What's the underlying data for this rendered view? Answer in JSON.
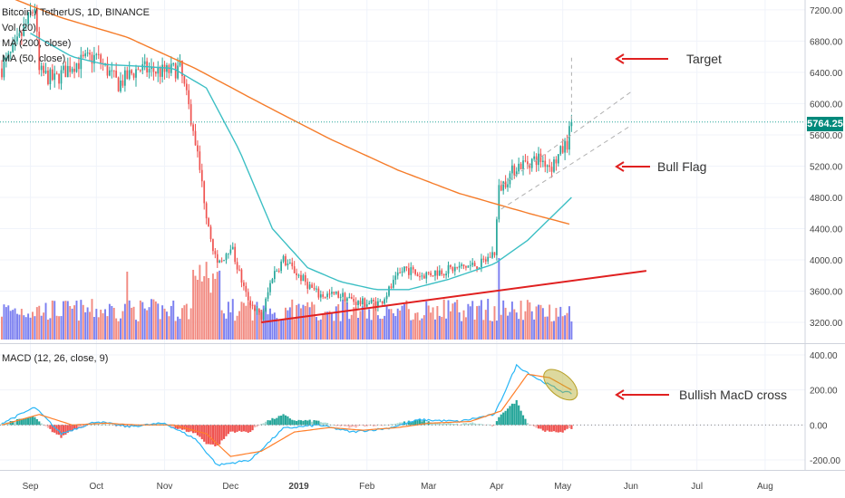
{
  "chart": {
    "symbol_label": "Bitcoin / TetherUS, 1D, BINANCE",
    "vol_label": "Vol (20)",
    "ma200_label": "MA (200, close)",
    "ma50_label": "MA (50, close)",
    "macd_label": "MACD (12, 26, close, 9)",
    "last_price": "5764.25"
  },
  "annotations": {
    "target": "Target",
    "bull_flag": "Bull Flag",
    "macd_cross": "Bullish MacD cross"
  },
  "colors": {
    "up": "#26a69a",
    "down": "#ef5350",
    "vol_up": "#7b7ff0",
    "vol_down": "#f28b82",
    "ma50": "#3cbfc4",
    "ma200": "#f57c2a",
    "macd_line": "#29b6f6",
    "signal_line": "#ff7f2a",
    "arrow": "#e02020"
  },
  "chart_data": [
    {
      "type": "candlestick",
      "title": "Bitcoin / TetherUS, 1D, BINANCE",
      "x_ticks": [
        "Sep",
        "Oct",
        "Nov",
        "Dec",
        "2019",
        "Feb",
        "Mar",
        "Apr",
        "May",
        "Jun",
        "Jul",
        "Aug"
      ],
      "y_ticks": [
        "7200.00",
        "6800.00",
        "6400.00",
        "6000.00",
        "5600.00",
        "5200.00",
        "4800.00",
        "4400.00",
        "4000.00",
        "3600.00",
        "3200.00"
      ],
      "ylim": [
        2980,
        7400
      ],
      "last_price": 5764.25,
      "price_path": [
        [
          "2018-08-19",
          6450
        ],
        [
          "2018-08-25",
          6700
        ],
        [
          "2018-09-03",
          7250
        ],
        [
          "2018-09-05",
          6400
        ],
        [
          "2018-09-12",
          6300
        ],
        [
          "2018-09-20",
          6500
        ],
        [
          "2018-10-01",
          6600
        ],
        [
          "2018-10-11",
          6250
        ],
        [
          "2018-10-20",
          6450
        ],
        [
          "2018-11-01",
          6400
        ],
        [
          "2018-11-08",
          6450
        ],
        [
          "2018-11-14",
          5700
        ],
        [
          "2018-11-20",
          4600
        ],
        [
          "2018-11-25",
          3900
        ],
        [
          "2018-12-01",
          4200
        ],
        [
          "2018-12-08",
          3550
        ],
        [
          "2018-12-15",
          3250
        ],
        [
          "2018-12-20",
          3800
        ],
        [
          "2018-12-25",
          4000
        ],
        [
          "2019-01-01",
          3800
        ],
        [
          "2019-01-10",
          3550
        ],
        [
          "2019-01-20",
          3550
        ],
        [
          "2019-01-28",
          3450
        ],
        [
          "2019-02-07",
          3450
        ],
        [
          "2019-02-18",
          3900
        ],
        [
          "2019-02-25",
          3800
        ],
        [
          "2019-03-05",
          3850
        ],
        [
          "2019-03-15",
          3900
        ],
        [
          "2019-03-25",
          3950
        ],
        [
          "2019-03-31",
          4100
        ],
        [
          "2019-04-02",
          4900
        ],
        [
          "2019-04-10",
          5200
        ],
        [
          "2019-04-20",
          5300
        ],
        [
          "2019-04-26",
          5200
        ],
        [
          "2019-05-03",
          5500
        ],
        [
          "2019-05-05",
          5764.25
        ]
      ],
      "series": [
        {
          "name": "MA (50, close)",
          "points": [
            [
              "2018-09-01",
              6900
            ],
            [
              "2018-09-20",
              6600
            ],
            [
              "2018-10-05",
              6500
            ],
            [
              "2018-10-20",
              6480
            ],
            [
              "2018-11-05",
              6450
            ],
            [
              "2018-11-20",
              6200
            ],
            [
              "2018-12-05",
              5400
            ],
            [
              "2018-12-20",
              4400
            ],
            [
              "2019-01-05",
              3900
            ],
            [
              "2019-01-20",
              3720
            ],
            [
              "2019-02-05",
              3620
            ],
            [
              "2019-02-20",
              3620
            ],
            [
              "2019-03-10",
              3750
            ],
            [
              "2019-03-31",
              3950
            ],
            [
              "2019-04-15",
              4250
            ],
            [
              "2019-05-05",
              4800
            ]
          ]
        },
        {
          "name": "MA (200, close)",
          "points": [
            [
              "2018-08-19",
              7400
            ],
            [
              "2018-09-15",
              7100
            ],
            [
              "2018-10-15",
              6850
            ],
            [
              "2018-11-15",
              6450
            ],
            [
              "2018-12-15",
              6000
            ],
            [
              "2019-01-15",
              5550
            ],
            [
              "2019-02-15",
              5150
            ],
            [
              "2019-03-15",
              4850
            ],
            [
              "2019-04-15",
              4600
            ],
            [
              "2019-05-05",
              4450
            ]
          ]
        }
      ],
      "annotations": [
        "Target",
        "Bull Flag"
      ]
    },
    {
      "type": "bar",
      "title": "Vol (20)",
      "note": "volume histogram with 20-period moving average, no printed scale"
    },
    {
      "type": "line",
      "title": "MACD (12, 26, close, 9)",
      "y_ticks": [
        "400.00",
        "200.00",
        "0.00",
        "-200.00"
      ],
      "ylim": [
        -260,
        440
      ],
      "series": [
        {
          "name": "MACD",
          "points": [
            [
              "2018-08-19",
              10
            ],
            [
              "2018-09-03",
              100
            ],
            [
              "2018-09-15",
              -50
            ],
            [
              "2018-10-01",
              20
            ],
            [
              "2018-10-15",
              -10
            ],
            [
              "2018-11-01",
              10
            ],
            [
              "2018-11-15",
              -80
            ],
            [
              "2018-11-25",
              -230
            ],
            [
              "2018-12-10",
              -200
            ],
            [
              "2018-12-25",
              -20
            ],
            [
              "2019-01-10",
              0
            ],
            [
              "2019-01-25",
              -40
            ],
            [
              "2019-02-10",
              -20
            ],
            [
              "2019-02-25",
              30
            ],
            [
              "2019-03-15",
              20
            ],
            [
              "2019-03-31",
              60
            ],
            [
              "2019-04-10",
              340
            ],
            [
              "2019-04-20",
              260
            ],
            [
              "2019-05-01",
              190
            ],
            [
              "2019-05-05",
              180
            ]
          ]
        },
        {
          "name": "Signal",
          "points": [
            [
              "2018-08-19",
              0
            ],
            [
              "2018-09-05",
              60
            ],
            [
              "2018-09-20",
              0
            ],
            [
              "2018-10-05",
              10
            ],
            [
              "2018-10-20",
              0
            ],
            [
              "2018-11-05",
              0
            ],
            [
              "2018-11-20",
              -50
            ],
            [
              "2018-12-01",
              -180
            ],
            [
              "2018-12-15",
              -150
            ],
            [
              "2018-12-30",
              -40
            ],
            [
              "2019-01-15",
              -15
            ],
            [
              "2019-01-30",
              -30
            ],
            [
              "2019-02-15",
              -15
            ],
            [
              "2019-03-01",
              10
            ],
            [
              "2019-03-20",
              20
            ],
            [
              "2019-04-03",
              80
            ],
            [
              "2019-04-15",
              290
            ],
            [
              "2019-04-25",
              270
            ],
            [
              "2019-05-05",
              200
            ]
          ]
        }
      ],
      "annotations": [
        "Bullish MacD cross"
      ]
    }
  ]
}
